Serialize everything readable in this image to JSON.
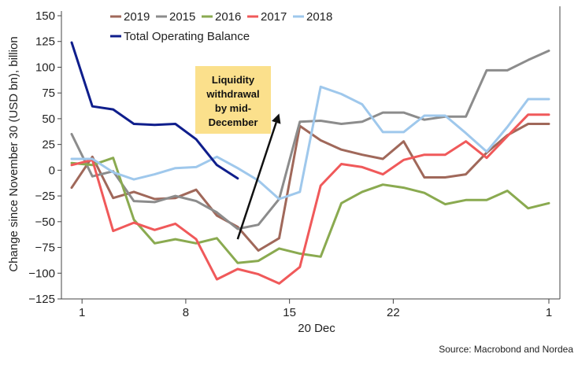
{
  "chart_data": {
    "type": "line",
    "ylabel": "Change since November 30 (USD bn), billion",
    "xlabel": "20 Dec",
    "source": "Source: Macrobond and Nordea",
    "ylim": [
      -125,
      150
    ],
    "yticks": [
      -125,
      -100,
      -75,
      -50,
      -25,
      0,
      25,
      50,
      75,
      100,
      125,
      150
    ],
    "xlim": [
      0,
      23
    ],
    "xticks": [
      {
        "x": 0.5,
        "label": "1"
      },
      {
        "x": 5.5,
        "label": "8"
      },
      {
        "x": 10.5,
        "label": "15"
      },
      {
        "x": 15.5,
        "label": "22"
      },
      {
        "x": 23,
        "label": "1"
      }
    ],
    "legend_position": "top",
    "annotation": {
      "lines": [
        "Liquidity",
        "withdrawal",
        "by mid-",
        "December"
      ],
      "background": "#fbe08c",
      "arrow_from": [
        8.0,
        -67
      ],
      "arrow_to": [
        10.0,
        55
      ]
    },
    "series": [
      {
        "name": "2019",
        "color": "#a0685a",
        "x": [
          0,
          1,
          2,
          3,
          4,
          5,
          6,
          7,
          8,
          9,
          10,
          11,
          12,
          13,
          14,
          15,
          16,
          17,
          18,
          19,
          20,
          21,
          22,
          23
        ],
        "values": [
          -17,
          13,
          -27,
          -21,
          -28,
          -27,
          -19,
          -44,
          -55,
          -78,
          -66,
          43,
          29,
          20,
          15,
          11,
          28,
          -7,
          -7,
          -4,
          17,
          34,
          45,
          45
        ]
      },
      {
        "name": "2015",
        "color": "#8c8c8c",
        "x": [
          0,
          1,
          2,
          3,
          4,
          5,
          6,
          7,
          8,
          9,
          10,
          11,
          12,
          13,
          14,
          15,
          16,
          17,
          18,
          19,
          20,
          21,
          22,
          23
        ],
        "values": [
          35,
          -6,
          -1,
          -30,
          -31,
          -25,
          -30,
          -41,
          -57,
          -53,
          -28,
          47,
          48,
          45,
          47,
          56,
          56,
          49,
          52,
          52,
          97,
          97,
          107,
          116
        ]
      },
      {
        "name": "2016",
        "color": "#8aaa50",
        "x": [
          0,
          1,
          2,
          3,
          4,
          5,
          6,
          7,
          8,
          9,
          10,
          11,
          12,
          13,
          14,
          15,
          16,
          17,
          18,
          19,
          20,
          21,
          22,
          23
        ],
        "values": [
          7,
          5,
          12,
          -48,
          -71,
          -67,
          -71,
          -66,
          -90,
          -88,
          -76,
          -81,
          -84,
          -32,
          -21,
          -14,
          -17,
          -22,
          -33,
          -29,
          -29,
          -20,
          -37,
          -32
        ]
      },
      {
        "name": "2017",
        "color": "#f0595a",
        "x": [
          0,
          1,
          2,
          3,
          4,
          5,
          6,
          7,
          8,
          9,
          10,
          11,
          12,
          13,
          14,
          15,
          16,
          17,
          18,
          19,
          20,
          21,
          22,
          23
        ],
        "values": [
          5,
          10,
          -59,
          -51,
          -58,
          -52,
          -67,
          -106,
          -96,
          -101,
          -110,
          -94,
          -15,
          6,
          3,
          -4,
          10,
          15,
          15,
          28,
          12,
          33,
          54,
          54
        ]
      },
      {
        "name": "2018",
        "color": "#9fc8ec",
        "x": [
          0,
          1,
          2,
          3,
          4,
          5,
          6,
          7,
          8,
          9,
          10,
          11,
          12,
          13,
          14,
          15,
          16,
          17,
          18,
          19,
          20,
          21,
          22,
          23
        ],
        "values": [
          11,
          11,
          -2,
          -9,
          -4,
          2,
          3,
          13,
          2,
          -10,
          -28,
          -21,
          81,
          74,
          64,
          37,
          37,
          53,
          53,
          36,
          18,
          42,
          69,
          69
        ]
      },
      {
        "name": "Total Operating Balance",
        "color": "#0f1e8c",
        "x": [
          0,
          1,
          2,
          3,
          4,
          5,
          6,
          7,
          8
        ],
        "values": [
          124,
          62,
          59,
          45,
          44,
          45,
          30,
          5,
          -8
        ]
      }
    ]
  }
}
